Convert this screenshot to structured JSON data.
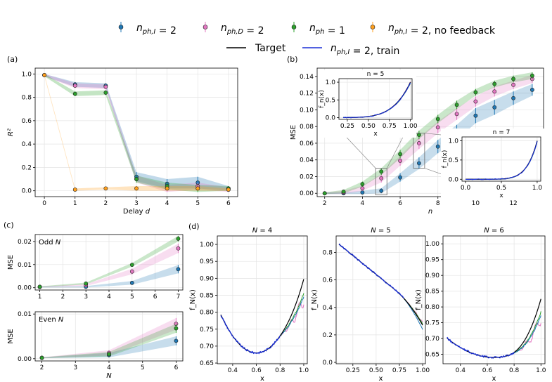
{
  "colors": {
    "blue": "#1f77b4",
    "pink": "#e377c2",
    "green": "#2ca02c",
    "orange": "#ff9f1c",
    "black": "#000000",
    "train": "#1a2fd6",
    "edge": "#111111"
  },
  "legend": {
    "row1": [
      "n_{ph,I} = 2",
      "n_{ph,D} = 2",
      "n_{ph} = 1",
      "n_{ph,I} = 2, no feedback"
    ],
    "row2": [
      "Target",
      "n_{ph,I} = 2, train"
    ]
  },
  "chart_data": [
    {
      "id": "a",
      "type": "scatter",
      "panel_label": "(a)",
      "xlabel": "Delay d",
      "ylabel": "R²",
      "xlim": [
        -0.3,
        6.3
      ],
      "ylim": [
        -0.05,
        1.05
      ],
      "x": [
        0,
        1,
        2,
        3,
        4,
        5,
        6
      ],
      "xticks": [
        0,
        1,
        2,
        3,
        4,
        5,
        6
      ],
      "yticks": [
        "0.0",
        "0.2",
        "0.4",
        "0.6",
        "0.8",
        "1.0"
      ],
      "series": [
        {
          "name": "n_{ph,I} = 2",
          "color": "blue",
          "values": [
            0.99,
            0.91,
            0.9,
            0.12,
            0.06,
            0.07,
            0.02
          ],
          "err": [
            0.01,
            0.02,
            0.02,
            0.04,
            0.04,
            0.05,
            0.02
          ]
        },
        {
          "name": "n_{ph,D} = 2",
          "color": "pink",
          "values": [
            0.99,
            0.9,
            0.89,
            0.1,
            0.02,
            0.04,
            0.01
          ],
          "err": [
            0.01,
            0.02,
            0.02,
            0.03,
            0.03,
            0.03,
            0.02
          ]
        },
        {
          "name": "n_{ph} = 1",
          "color": "green",
          "values": [
            0.99,
            0.83,
            0.84,
            0.1,
            0.04,
            0.02,
            0.02
          ],
          "err": [
            0.01,
            0.02,
            0.02,
            0.03,
            0.03,
            0.03,
            0.02
          ]
        },
        {
          "name": "n_{ph,I} = 2, no feedback",
          "color": "orange",
          "values": [
            0.99,
            0.01,
            0.02,
            0.02,
            0.02,
            0.02,
            0.01
          ],
          "err": [
            0.01,
            0.01,
            0.01,
            0.02,
            0.02,
            0.02,
            0.01
          ]
        }
      ]
    },
    {
      "id": "b",
      "type": "scatter",
      "panel_label": "(b)",
      "xlabel": "n",
      "ylabel": "MSE",
      "xlim": [
        1.6,
        13.6
      ],
      "ylim": [
        -0.004,
        0.15
      ],
      "x": [
        2,
        3,
        4,
        5,
        6,
        7,
        8,
        9,
        10,
        11,
        12,
        13
      ],
      "xticks": [
        2,
        4,
        6,
        8,
        10,
        12
      ],
      "yticks": [
        "0.00",
        "0.02",
        "0.04",
        "0.06",
        "0.08",
        "0.10",
        "0.12",
        "0.14"
      ],
      "series": [
        {
          "name": "n_{ph,I} = 2",
          "color": "blue",
          "values": [
            0.0,
            0.0,
            0.001,
            0.003,
            0.019,
            0.036,
            0.056,
            0.073,
            0.093,
            0.103,
            0.114,
            0.124
          ],
          "err": [
            0.001,
            0.001,
            0.002,
            0.003,
            0.005,
            0.007,
            0.008,
            0.009,
            0.009,
            0.009,
            0.008,
            0.007
          ]
        },
        {
          "name": "n_{ph,D} = 2",
          "color": "pink",
          "values": [
            0.0,
            0.001,
            0.006,
            0.018,
            0.039,
            0.06,
            0.079,
            0.095,
            0.11,
            0.122,
            0.13,
            0.137
          ],
          "err": [
            0.001,
            0.002,
            0.003,
            0.005,
            0.006,
            0.007,
            0.007,
            0.007,
            0.006,
            0.006,
            0.005,
            0.005
          ]
        },
        {
          "name": "n_{ph} = 1",
          "color": "green",
          "values": [
            0.0,
            0.002,
            0.011,
            0.026,
            0.047,
            0.07,
            0.089,
            0.106,
            0.121,
            0.131,
            0.137,
            0.141
          ],
          "err": [
            0.001,
            0.002,
            0.003,
            0.004,
            0.005,
            0.005,
            0.005,
            0.005,
            0.004,
            0.004,
            0.004,
            0.004
          ]
        }
      ],
      "insets": [
        {
          "title": "n = 5",
          "xlabel": "x",
          "ylabel": "f_n(x)",
          "xticks": [
            "0.25",
            "0.50",
            "0.75",
            "1.00"
          ],
          "yticks": [
            "0.0",
            "0.5",
            "1.0"
          ],
          "xlim": [
            0.15,
            1.02
          ],
          "ylim": [
            -0.05,
            1.1
          ],
          "n": 5
        },
        {
          "title": "n = 7",
          "xlabel": "x",
          "ylabel": "f_n(x)",
          "xticks": [
            "0.0",
            "0.5",
            "1.0"
          ],
          "yticks": [
            "0.0",
            "0.5",
            "1.0"
          ],
          "xlim": [
            -0.05,
            1.05
          ],
          "ylim": [
            -0.05,
            1.1
          ],
          "n": 7
        }
      ]
    },
    {
      "id": "c-odd",
      "type": "scatter",
      "panel_label": "(c)",
      "inner_label": "Odd N",
      "xlabel": "",
      "ylabel": "MSE",
      "xlim": [
        0.8,
        7.2
      ],
      "ylim": [
        -0.001,
        0.023
      ],
      "x": [
        1,
        3,
        5,
        7
      ],
      "xticks": [
        1,
        2,
        3,
        4,
        5,
        6,
        7
      ],
      "yticks": [
        "0.00",
        "0.01",
        "0.02"
      ],
      "series": [
        {
          "name": "n_{ph,I} = 2",
          "color": "blue",
          "values": [
            0.0003,
            0.0004,
            0.0021,
            0.008
          ],
          "err": [
            0.0002,
            0.0003,
            0.0008,
            0.0018
          ]
        },
        {
          "name": "n_{ph,D} = 2",
          "color": "pink",
          "values": [
            0.0004,
            0.0011,
            0.007,
            0.017
          ],
          "err": [
            0.0002,
            0.0004,
            0.0012,
            0.002
          ]
        },
        {
          "name": "n_{ph} = 1",
          "color": "green",
          "values": [
            0.0004,
            0.0018,
            0.0099,
            0.0212
          ],
          "err": [
            0.0002,
            0.0004,
            0.0008,
            0.0012
          ]
        }
      ]
    },
    {
      "id": "c-even",
      "type": "scatter",
      "inner_label": "Even N",
      "xlabel": "N",
      "ylabel": "MSE",
      "xlim": [
        1.8,
        6.2
      ],
      "ylim": [
        -0.0005,
        0.0105
      ],
      "x": [
        2,
        4,
        6
      ],
      "xticks": [
        2,
        3,
        4,
        5,
        6
      ],
      "yticks": [
        "0.00",
        "0.01"
      ],
      "series": [
        {
          "name": "n_{ph,I} = 2",
          "color": "blue",
          "values": [
            0.0002,
            0.0008,
            0.004
          ],
          "err": [
            0.0001,
            0.0005,
            0.001
          ]
        },
        {
          "name": "n_{ph,D} = 2",
          "color": "pink",
          "values": [
            0.0002,
            0.0013,
            0.0078
          ],
          "err": [
            0.0001,
            0.0006,
            0.0013
          ]
        },
        {
          "name": "n_{ph} = 1",
          "color": "green",
          "values": [
            0.0002,
            0.001,
            0.0068
          ],
          "err": [
            0.0001,
            0.0005,
            0.001
          ]
        }
      ]
    },
    {
      "id": "d-4",
      "type": "line",
      "panel_label": "(d)",
      "title": "N = 4",
      "xlabel": "x",
      "ylabel": "f_N(x)",
      "xlim": [
        0.27,
        1.03
      ],
      "ylim": [
        0.648,
        1.025
      ],
      "xticks": [
        "0.4",
        "0.6",
        "0.8",
        "1.0"
      ],
      "yticks": [
        "0.65",
        "0.70",
        "0.75",
        "0.80",
        "0.85",
        "0.90",
        "0.95",
        "1.00"
      ],
      "N": 4
    },
    {
      "id": "d-5",
      "type": "line",
      "title": "N = 5",
      "xlabel": "x",
      "ylabel": "f_N(x)",
      "xlim": [
        0.07,
        1.03
      ],
      "ylim": [
        -0.01,
        0.92
      ],
      "xticks": [
        "0.25",
        "0.50",
        "0.75",
        "1.00"
      ],
      "yticks": [
        "0.0",
        "0.2",
        "0.4",
        "0.6",
        "0.8"
      ],
      "N": 5
    },
    {
      "id": "d-6",
      "type": "line",
      "title": "N = 6",
      "xlabel": "x",
      "ylabel": "f_N(x)",
      "xlim": [
        0.27,
        1.03
      ],
      "ylim": [
        0.62,
        1.025
      ],
      "xticks": [
        "0.4",
        "0.6",
        "0.8",
        "1.0"
      ],
      "yticks": [
        "0.65",
        "0.70",
        "0.75",
        "0.80",
        "0.85",
        "0.90",
        "0.95",
        "1.00"
      ],
      "N": 6
    }
  ]
}
